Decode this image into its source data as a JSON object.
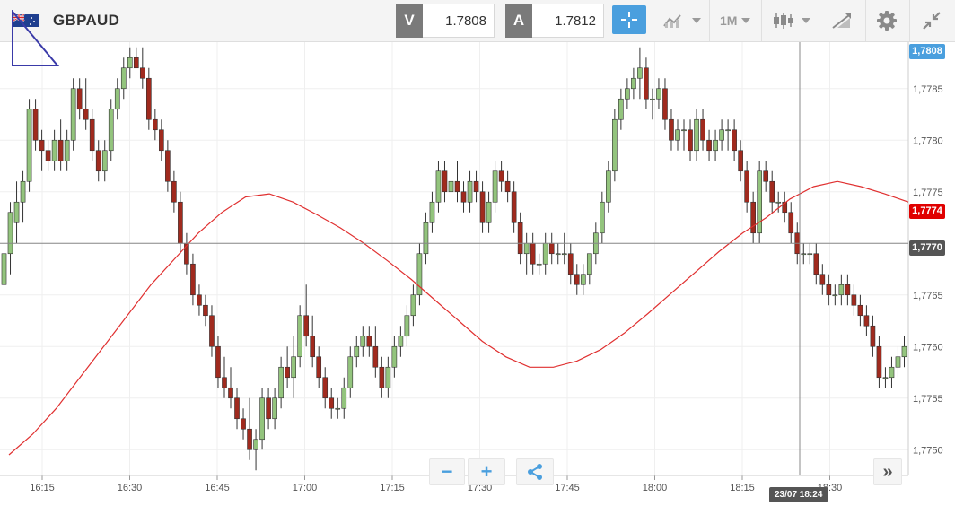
{
  "header": {
    "symbol": "GBPAUD",
    "flag_icon": "gb-au-flag-icon",
    "sell": {
      "key": "V",
      "value": "1.7808"
    },
    "buy": {
      "key": "A",
      "value": "1.7812"
    },
    "timeframe": "1M",
    "icons": [
      "crosshair-icon",
      "indicator-icon",
      "timeframe-dropdown",
      "candlestick-icon",
      "drawing-icon",
      "settings-icon",
      "collapse-icon"
    ],
    "accent_color": "#4a9fde"
  },
  "price_axis": {
    "labels": [
      "1,7785",
      "1,7780",
      "1,7775",
      "1,7770",
      "1,7765",
      "1,7760",
      "1,7755",
      "1,7750"
    ],
    "current_price": "1,7808",
    "ma_price": "1,7774",
    "crosshair_price": "1,7770"
  },
  "time_axis": {
    "labels": [
      "16:15",
      "16:30",
      "16:45",
      "17:00",
      "17:15",
      "17:30",
      "17:45",
      "18:00",
      "18:15",
      "18:30"
    ],
    "crosshair_time": "23/07 18:24"
  },
  "controls": {
    "zoom_out": "−",
    "zoom_in": "+",
    "share_icon": "share-icon",
    "scroll_end": "»"
  },
  "chart_data": {
    "type": "candlestick",
    "timeframe": "1M",
    "ylim": [
      1.77475,
      1.77895
    ],
    "up_color": "#93c47d",
    "down_color": "#a02a1e",
    "ma_color": "#e03030",
    "candles": [
      [
        1.7766,
        1.7771,
        1.7763,
        1.7769
      ],
      [
        1.7769,
        1.7774,
        1.7767,
        1.7773
      ],
      [
        1.7772,
        1.7776,
        1.777,
        1.7774
      ],
      [
        1.7774,
        1.7777,
        1.7772,
        1.7776
      ],
      [
        1.7776,
        1.7784,
        1.7775,
        1.7783
      ],
      [
        1.7783,
        1.7784,
        1.7779,
        1.778
      ],
      [
        1.778,
        1.7781,
        1.7777,
        1.7779
      ],
      [
        1.7779,
        1.778,
        1.7777,
        1.7778
      ],
      [
        1.7778,
        1.7781,
        1.7777,
        1.778
      ],
      [
        1.778,
        1.7782,
        1.7777,
        1.7778
      ],
      [
        1.7778,
        1.7781,
        1.7777,
        1.778
      ],
      [
        1.778,
        1.7786,
        1.7779,
        1.7785
      ],
      [
        1.7785,
        1.7786,
        1.7782,
        1.7783
      ],
      [
        1.7783,
        1.7786,
        1.7781,
        1.7782
      ],
      [
        1.7782,
        1.7783,
        1.7778,
        1.7779
      ],
      [
        1.7779,
        1.778,
        1.7776,
        1.7777
      ],
      [
        1.7777,
        1.778,
        1.7776,
        1.7779
      ],
      [
        1.7779,
        1.7784,
        1.7778,
        1.7783
      ],
      [
        1.7783,
        1.7786,
        1.7782,
        1.7785
      ],
      [
        1.7785,
        1.7788,
        1.7784,
        1.7787
      ],
      [
        1.7787,
        1.7789,
        1.7786,
        1.7788
      ],
      [
        1.7788,
        1.7789,
        1.7787,
        1.7787
      ],
      [
        1.7787,
        1.7789,
        1.7785,
        1.7786
      ],
      [
        1.7786,
        1.7787,
        1.7781,
        1.7782
      ],
      [
        1.7782,
        1.7783,
        1.778,
        1.7781
      ],
      [
        1.7781,
        1.7782,
        1.7778,
        1.7779
      ],
      [
        1.7779,
        1.778,
        1.7775,
        1.7776
      ],
      [
        1.7776,
        1.7777,
        1.7773,
        1.7774
      ],
      [
        1.7774,
        1.7775,
        1.7769,
        1.777
      ],
      [
        1.777,
        1.7771,
        1.7767,
        1.7768
      ],
      [
        1.7768,
        1.7769,
        1.7764,
        1.7765
      ],
      [
        1.7765,
        1.7766,
        1.7763,
        1.7764
      ],
      [
        1.7764,
        1.7765,
        1.7762,
        1.7763
      ],
      [
        1.7763,
        1.7764,
        1.7759,
        1.776
      ],
      [
        1.776,
        1.7761,
        1.7756,
        1.7757
      ],
      [
        1.7757,
        1.7759,
        1.7755,
        1.7756
      ],
      [
        1.7756,
        1.7758,
        1.7754,
        1.7755
      ],
      [
        1.7755,
        1.7756,
        1.7752,
        1.7753
      ],
      [
        1.7753,
        1.7754,
        1.7751,
        1.7752
      ],
      [
        1.7752,
        1.7755,
        1.7749,
        1.775
      ],
      [
        1.775,
        1.7752,
        1.7748,
        1.7751
      ],
      [
        1.7751,
        1.7756,
        1.775,
        1.7755
      ],
      [
        1.7755,
        1.7756,
        1.7752,
        1.7753
      ],
      [
        1.7753,
        1.7756,
        1.7752,
        1.7755
      ],
      [
        1.7755,
        1.7759,
        1.7754,
        1.7758
      ],
      [
        1.7758,
        1.776,
        1.7756,
        1.7757
      ],
      [
        1.7757,
        1.7761,
        1.7755,
        1.7759
      ],
      [
        1.7759,
        1.7764,
        1.7758,
        1.7763
      ],
      [
        1.7763,
        1.7766,
        1.776,
        1.7761
      ],
      [
        1.7761,
        1.7763,
        1.7758,
        1.7759
      ],
      [
        1.7759,
        1.776,
        1.7756,
        1.7757
      ],
      [
        1.7757,
        1.7758,
        1.7754,
        1.7755
      ],
      [
        1.7755,
        1.7756,
        1.7753,
        1.7754
      ],
      [
        1.7754,
        1.7755,
        1.7753,
        1.7754
      ],
      [
        1.7754,
        1.7757,
        1.7753,
        1.7756
      ],
      [
        1.7756,
        1.776,
        1.7755,
        1.7759
      ],
      [
        1.7759,
        1.7761,
        1.7758,
        1.776
      ],
      [
        1.776,
        1.7762,
        1.7759,
        1.7761
      ],
      [
        1.7761,
        1.7762,
        1.7759,
        1.776
      ],
      [
        1.776,
        1.7762,
        1.7757,
        1.7758
      ],
      [
        1.7758,
        1.7759,
        1.7755,
        1.7756
      ],
      [
        1.7756,
        1.7759,
        1.7755,
        1.7758
      ],
      [
        1.7758,
        1.7761,
        1.7757,
        1.776
      ],
      [
        1.776,
        1.7762,
        1.7759,
        1.7761
      ],
      [
        1.7761,
        1.7764,
        1.776,
        1.7763
      ],
      [
        1.7763,
        1.7766,
        1.7762,
        1.7765
      ],
      [
        1.7765,
        1.777,
        1.7764,
        1.7769
      ],
      [
        1.7769,
        1.7773,
        1.7768,
        1.7772
      ],
      [
        1.7772,
        1.7775,
        1.7771,
        1.7774
      ],
      [
        1.7774,
        1.7778,
        1.7773,
        1.7777
      ],
      [
        1.7777,
        1.7778,
        1.7774,
        1.7775
      ],
      [
        1.7775,
        1.7776,
        1.7774,
        1.7776
      ],
      [
        1.7776,
        1.7778,
        1.7774,
        1.7775
      ],
      [
        1.7775,
        1.7776,
        1.7773,
        1.7774
      ],
      [
        1.7774,
        1.7777,
        1.7773,
        1.7776
      ],
      [
        1.7776,
        1.7777,
        1.7774,
        1.7775
      ],
      [
        1.7775,
        1.7776,
        1.7771,
        1.7772
      ],
      [
        1.7772,
        1.7775,
        1.7771,
        1.7774
      ],
      [
        1.7774,
        1.7778,
        1.7773,
        1.7777
      ],
      [
        1.7777,
        1.7778,
        1.7775,
        1.7776
      ],
      [
        1.7776,
        1.7777,
        1.7774,
        1.7775
      ],
      [
        1.7775,
        1.7776,
        1.7771,
        1.7772
      ],
      [
        1.7772,
        1.7773,
        1.7768,
        1.7769
      ],
      [
        1.7769,
        1.7771,
        1.7767,
        1.777
      ],
      [
        1.777,
        1.7771,
        1.7767,
        1.7768
      ],
      [
        1.7768,
        1.7769,
        1.7767,
        1.7768
      ],
      [
        1.7768,
        1.7771,
        1.7767,
        1.777
      ],
      [
        1.777,
        1.7771,
        1.7768,
        1.7769
      ],
      [
        1.7769,
        1.777,
        1.7768,
        1.7769
      ],
      [
        1.7769,
        1.7771,
        1.7768,
        1.7769
      ],
      [
        1.7769,
        1.777,
        1.7766,
        1.7767
      ],
      [
        1.7767,
        1.7768,
        1.7765,
        1.7766
      ],
      [
        1.7766,
        1.7768,
        1.7765,
        1.7767
      ],
      [
        1.7767,
        1.7769,
        1.7766,
        1.7769
      ],
      [
        1.7769,
        1.7772,
        1.7768,
        1.7771
      ],
      [
        1.7771,
        1.7775,
        1.777,
        1.7774
      ],
      [
        1.7774,
        1.7778,
        1.7773,
        1.7777
      ],
      [
        1.7777,
        1.7783,
        1.7776,
        1.7782
      ],
      [
        1.7782,
        1.7785,
        1.7781,
        1.7784
      ],
      [
        1.7784,
        1.7786,
        1.7783,
        1.7785
      ],
      [
        1.7785,
        1.7787,
        1.7784,
        1.7786
      ],
      [
        1.7786,
        1.7789,
        1.7784,
        1.7787
      ],
      [
        1.7787,
        1.7788,
        1.7783,
        1.7784
      ],
      [
        1.7784,
        1.7785,
        1.7782,
        1.7784
      ],
      [
        1.7784,
        1.7786,
        1.7783,
        1.7785
      ],
      [
        1.7785,
        1.7786,
        1.7781,
        1.7782
      ],
      [
        1.7782,
        1.7783,
        1.7779,
        1.778
      ],
      [
        1.778,
        1.7782,
        1.7779,
        1.7781
      ],
      [
        1.7781,
        1.7782,
        1.7779,
        1.7781
      ],
      [
        1.7781,
        1.7782,
        1.7778,
        1.7779
      ],
      [
        1.7779,
        1.7783,
        1.7778,
        1.7782
      ],
      [
        1.7782,
        1.7783,
        1.7779,
        1.778
      ],
      [
        1.778,
        1.7781,
        1.7778,
        1.7779
      ],
      [
        1.7779,
        1.7781,
        1.7778,
        1.778
      ],
      [
        1.778,
        1.7782,
        1.7779,
        1.7781
      ],
      [
        1.7781,
        1.7782,
        1.7779,
        1.7781
      ],
      [
        1.7781,
        1.7782,
        1.7778,
        1.7779
      ],
      [
        1.7779,
        1.778,
        1.7776,
        1.7777
      ],
      [
        1.7777,
        1.7778,
        1.7773,
        1.7774
      ],
      [
        1.7774,
        1.7775,
        1.777,
        1.7771
      ],
      [
        1.7771,
        1.7778,
        1.777,
        1.7777
      ],
      [
        1.7777,
        1.7778,
        1.7775,
        1.7776
      ],
      [
        1.7776,
        1.7777,
        1.7773,
        1.7774
      ],
      [
        1.7774,
        1.7775,
        1.7773,
        1.7774
      ],
      [
        1.7774,
        1.7775,
        1.7772,
        1.7773
      ],
      [
        1.7773,
        1.7774,
        1.777,
        1.7771
      ],
      [
        1.7771,
        1.7772,
        1.7768,
        1.7769
      ],
      [
        1.7769,
        1.777,
        1.7768,
        1.7769
      ],
      [
        1.7769,
        1.777,
        1.7768,
        1.7769
      ],
      [
        1.7769,
        1.777,
        1.7766,
        1.7767
      ],
      [
        1.7767,
        1.7768,
        1.7765,
        1.7766
      ],
      [
        1.7766,
        1.7767,
        1.7764,
        1.7765
      ],
      [
        1.7765,
        1.7766,
        1.7764,
        1.7765
      ],
      [
        1.7765,
        1.7767,
        1.7764,
        1.7766
      ],
      [
        1.7766,
        1.7767,
        1.7764,
        1.7765
      ],
      [
        1.7765,
        1.7766,
        1.7763,
        1.7764
      ],
      [
        1.7764,
        1.7765,
        1.7762,
        1.7763
      ],
      [
        1.7763,
        1.7764,
        1.7761,
        1.7762
      ],
      [
        1.7762,
        1.7763,
        1.7759,
        1.776
      ],
      [
        1.776,
        1.7761,
        1.7756,
        1.7757
      ],
      [
        1.7757,
        1.7758,
        1.7756,
        1.7757
      ],
      [
        1.7757,
        1.7759,
        1.7756,
        1.7758
      ],
      [
        1.7758,
        1.776,
        1.7757,
        1.7759
      ],
      [
        1.7759,
        1.7761,
        1.7758,
        1.776
      ]
    ],
    "moving_average": [
      1.77495,
      1.77515,
      1.7754,
      1.7757,
      1.776,
      1.7763,
      1.7766,
      1.77685,
      1.7771,
      1.7773,
      1.77745,
      1.77748,
      1.7774,
      1.77728,
      1.77715,
      1.777,
      1.77683,
      1.77665,
      1.77645,
      1.77625,
      1.77605,
      1.7759,
      1.7758,
      1.7758,
      1.77586,
      1.77597,
      1.77613,
      1.77632,
      1.77652,
      1.77672,
      1.77692,
      1.7771,
      1.77725,
      1.77743,
      1.77755,
      1.7776,
      1.77755,
      1.77748,
      1.7774
    ]
  }
}
